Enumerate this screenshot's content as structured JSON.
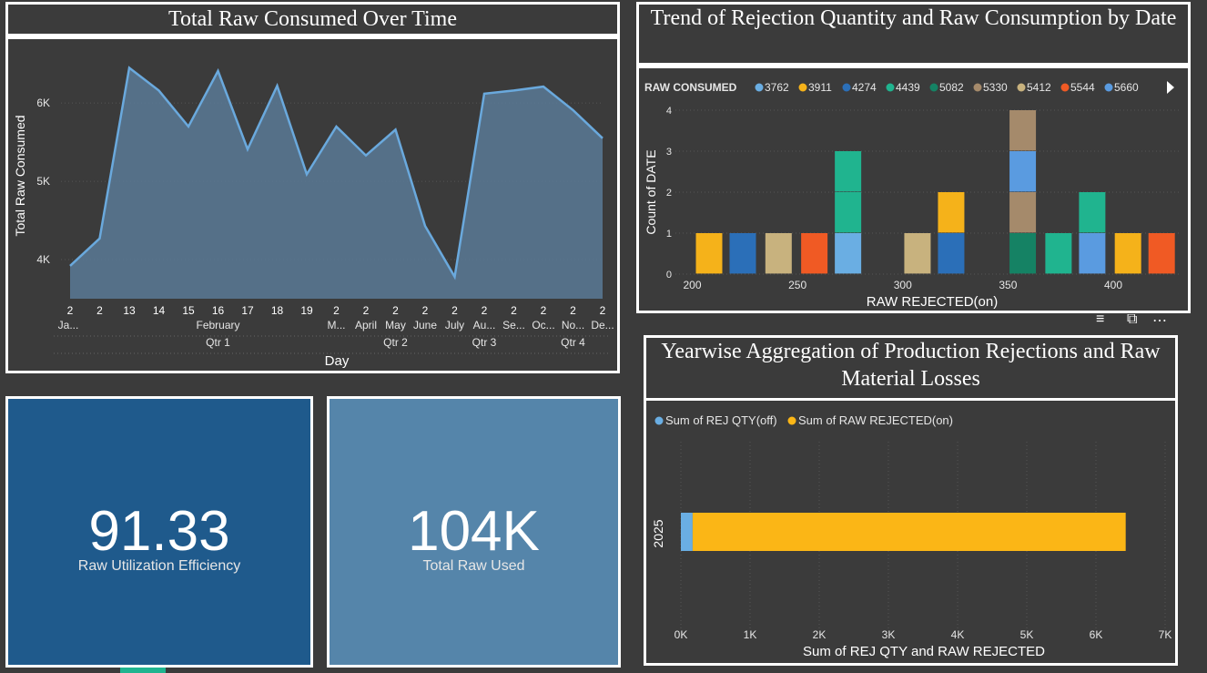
{
  "colors": {
    "background": "#3b3b3b",
    "kpi_dark": "#1f5a8c",
    "kpi_light": "#5585aa",
    "line": "#6aa9dd",
    "area": "#5b7a97"
  },
  "line_chart": {
    "title": "Total Raw Consumed Over Time",
    "ylabel": "Total Raw Consumed",
    "xlabel": "Day",
    "y_ticks": [
      "6K",
      "5K",
      "4K"
    ],
    "day_labels": [
      "2",
      "2",
      "13",
      "14",
      "15",
      "16",
      "17",
      "18",
      "19",
      "2",
      "2",
      "2",
      "2",
      "2",
      "2",
      "2",
      "2",
      "2",
      "2"
    ],
    "month_labels": [
      "Ja...",
      "February",
      "M...",
      "April",
      "May",
      "June",
      "July",
      "Au...",
      "Se...",
      "Oc...",
      "No...",
      "De..."
    ],
    "quarter_labels": [
      "Qtr 1",
      "Qtr 2",
      "Qtr 3",
      "Qtr 4"
    ]
  },
  "stacked_chart": {
    "title": "Trend of Rejection Quantity and Raw Consumption by Date",
    "legend_title": "RAW CONSUMED",
    "legend": [
      {
        "label": "3762",
        "color": "#6aaee3"
      },
      {
        "label": "3911",
        "color": "#f5b21a"
      },
      {
        "label": "4274",
        "color": "#2b6fb8"
      },
      {
        "label": "4439",
        "color": "#20b48f"
      },
      {
        "label": "5082",
        "color": "#158264"
      },
      {
        "label": "5330",
        "color": "#a58a6b"
      },
      {
        "label": "5412",
        "color": "#c8b27e"
      },
      {
        "label": "5544",
        "color": "#f05a24"
      },
      {
        "label": "5660",
        "color": "#5a9be0"
      }
    ],
    "ylabel": "Count of DATE",
    "xlabel": "RAW REJECTED(on)",
    "y_ticks": [
      "4",
      "3",
      "2",
      "1",
      "0"
    ],
    "x_ticks": [
      "200",
      "250",
      "300",
      "350",
      "400"
    ]
  },
  "bar_chart": {
    "title": "Yearwise Aggregation of Production Rejections and Raw Material Losses",
    "legend": [
      {
        "label": "Sum of REJ QTY(off)",
        "color": "#6aaee3"
      },
      {
        "label": "Sum of RAW REJECTED(on)",
        "color": "#fbb616"
      }
    ],
    "category": "2025",
    "x_ticks": [
      "0K",
      "1K",
      "2K",
      "3K",
      "4K",
      "5K",
      "6K",
      "7K"
    ],
    "xlabel": "Sum of REJ QTY and RAW REJECTED"
  },
  "kpis": {
    "efficiency_value": "91.33",
    "efficiency_label": "Raw Utilization Efficiency",
    "total_value": "104K",
    "total_label": "Total Raw Used"
  },
  "chart_data": [
    {
      "type": "area",
      "title": "Total Raw Consumed Over Time",
      "xlabel": "Day",
      "ylabel": "Total Raw Consumed",
      "x": [
        "Jan 2",
        "Feb 2",
        "Feb 13",
        "Feb 14",
        "Feb 15",
        "Feb 16",
        "Feb 17",
        "Feb 18",
        "Feb 19",
        "Mar 2",
        "Apr 2",
        "May 2",
        "Jun 2",
        "Jul 2",
        "Aug 2",
        "Sep 2",
        "Oct 2",
        "Nov 2",
        "Dec 2"
      ],
      "values": [
        3920,
        4270,
        6450,
        6160,
        5700,
        6410,
        5410,
        6220,
        5090,
        5700,
        5330,
        5660,
        4430,
        3780,
        6120,
        6160,
        6210,
        5910,
        5550
      ],
      "ylim": [
        3500,
        6700
      ],
      "grid": true
    },
    {
      "type": "bar",
      "stacked": true,
      "title": "Trend of Rejection Quantity and Raw Consumption by Date",
      "xlabel": "RAW REJECTED(on)",
      "ylabel": "Count of DATE",
      "ylim": [
        0,
        4
      ],
      "xlim": [
        192,
        432
      ],
      "bars": [
        {
          "x": 208,
          "segments": [
            {
              "series": "3911",
              "value": 1
            }
          ]
        },
        {
          "x": 224,
          "segments": [
            {
              "series": "4274",
              "value": 1
            }
          ]
        },
        {
          "x": 241,
          "segments": [
            {
              "series": "5412",
              "value": 1
            }
          ]
        },
        {
          "x": 258,
          "segments": [
            {
              "series": "5544",
              "value": 1
            }
          ]
        },
        {
          "x": 274,
          "segments": [
            {
              "series": "3762",
              "value": 1
            },
            {
              "series": "4439",
              "value": 1
            },
            {
              "series": "4439",
              "value": 1
            }
          ]
        },
        {
          "x": 307,
          "segments": [
            {
              "series": "5412",
              "value": 1
            }
          ]
        },
        {
          "x": 323,
          "segments": [
            {
              "series": "4274",
              "value": 1
            },
            {
              "series": "3911",
              "value": 1
            }
          ]
        },
        {
          "x": 357,
          "segments": [
            {
              "series": "5082",
              "value": 1
            },
            {
              "series": "5330",
              "value": 1
            },
            {
              "series": "5660",
              "value": 1
            },
            {
              "series": "5330",
              "value": 1
            }
          ]
        },
        {
          "x": 374,
          "segments": [
            {
              "series": "4439",
              "value": 1
            }
          ]
        },
        {
          "x": 390,
          "segments": [
            {
              "series": "5660",
              "value": 1
            },
            {
              "series": "4439",
              "value": 1
            }
          ]
        },
        {
          "x": 407,
          "segments": [
            {
              "series": "3911",
              "value": 1
            }
          ]
        },
        {
          "x": 423,
          "segments": [
            {
              "series": "5544",
              "value": 1
            }
          ]
        }
      ]
    },
    {
      "type": "bar",
      "orientation": "horizontal",
      "stacked": true,
      "title": "Yearwise Aggregation of Production Rejections and Raw Material Losses",
      "categories": [
        "2025"
      ],
      "series": [
        {
          "name": "Sum of REJ QTY(off)",
          "values": [
            170
          ]
        },
        {
          "name": "Sum of RAW REJECTED(on)",
          "values": [
            6260
          ]
        }
      ],
      "xlabel": "Sum of REJ QTY and RAW REJECTED",
      "xlim": [
        0,
        7000
      ]
    }
  ]
}
